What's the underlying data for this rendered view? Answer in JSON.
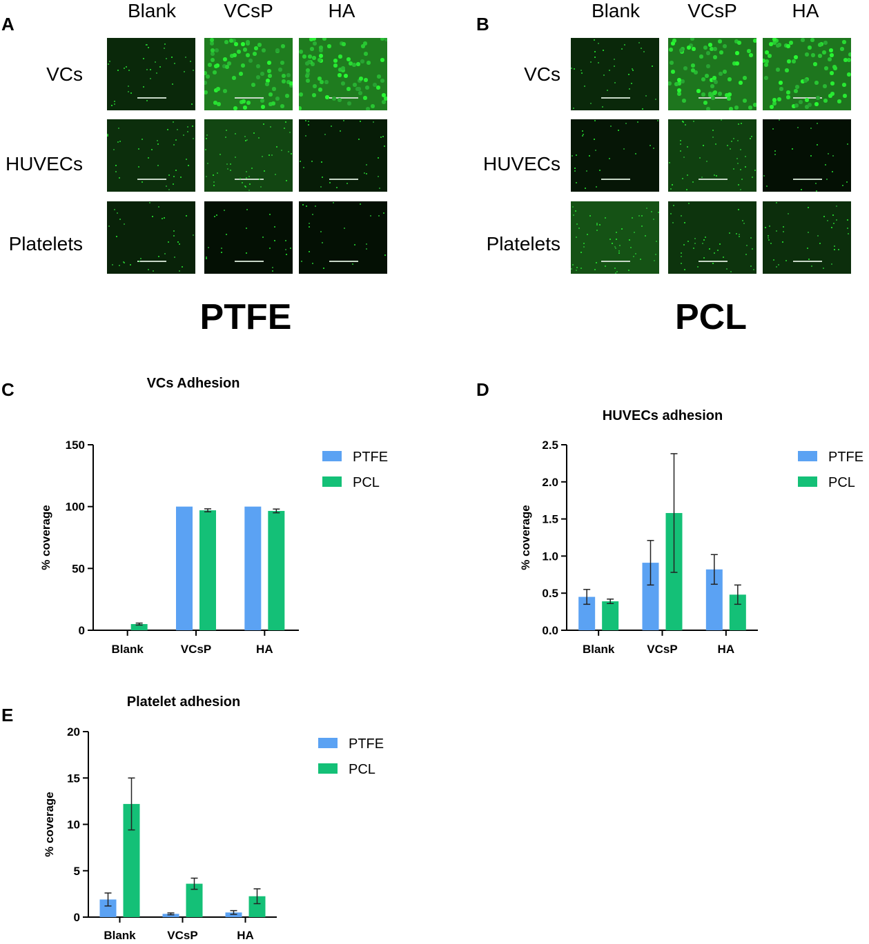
{
  "colors": {
    "ptfe": "#5ba2f3",
    "pcl": "#14c077",
    "axis": "#000000",
    "fluor": "#2fe040"
  },
  "panels": {
    "a": {
      "letter": "A",
      "material": "PTFE"
    },
    "b": {
      "letter": "B",
      "material": "PCL"
    },
    "c": {
      "letter": "C"
    },
    "d": {
      "letter": "D"
    },
    "e": {
      "letter": "E"
    }
  },
  "micrographs": {
    "columns": [
      "Blank",
      "VCsP",
      "HA"
    ],
    "rows": [
      "VCs",
      "HUVECs",
      "Platelets"
    ],
    "brightness_ptfe": [
      [
        0.25,
        0.95,
        0.95
      ],
      [
        0.3,
        0.5,
        0.15
      ],
      [
        0.2,
        0.05,
        0.05
      ]
    ],
    "brightness_pcl": [
      [
        0.25,
        0.9,
        0.9
      ],
      [
        0.1,
        0.45,
        0.05
      ],
      [
        0.6,
        0.35,
        0.3
      ]
    ]
  },
  "chart_data": [
    {
      "type": "bar",
      "title": "VCs Adhesion",
      "categories": [
        "Blank",
        "VCsP",
        "HA"
      ],
      "series": [
        {
          "name": "PTFE",
          "values": [
            0,
            100,
            100
          ],
          "errors": [
            0,
            0,
            0
          ]
        },
        {
          "name": "PCL",
          "values": [
            5,
            97,
            96.5
          ],
          "errors": [
            0.8,
            1.2,
            1.5
          ]
        }
      ],
      "ylabel": "% coverage",
      "ylim": [
        0,
        150
      ],
      "yticks": [
        "0",
        "50",
        "100",
        "150"
      ],
      "legend": "top-right"
    },
    {
      "type": "bar",
      "title": "HUVECs adhesion",
      "categories": [
        "Blank",
        "VCsP",
        "HA"
      ],
      "series": [
        {
          "name": "PTFE",
          "values": [
            0.45,
            0.91,
            0.82
          ],
          "errors": [
            0.1,
            0.3,
            0.2
          ]
        },
        {
          "name": "PCL",
          "values": [
            0.39,
            1.58,
            0.48
          ],
          "errors": [
            0.03,
            0.8,
            0.13
          ]
        }
      ],
      "ylabel": "% coverage",
      "ylim": [
        0,
        2.5
      ],
      "yticks": [
        "0.0",
        "0.5",
        "1.0",
        "1.5",
        "2.0",
        "2.5"
      ],
      "legend": "top-right"
    },
    {
      "type": "bar",
      "title": "Platelet adhesion",
      "categories": [
        "Blank",
        "VCsP",
        "HA"
      ],
      "series": [
        {
          "name": "PTFE",
          "values": [
            1.9,
            0.35,
            0.5
          ],
          "errors": [
            0.7,
            0.1,
            0.2
          ]
        },
        {
          "name": "PCL",
          "values": [
            12.2,
            3.6,
            2.25
          ],
          "errors": [
            2.8,
            0.6,
            0.8
          ]
        }
      ],
      "ylabel": "% coverage",
      "ylim": [
        0,
        20
      ],
      "yticks": [
        "0",
        "5",
        "10",
        "15",
        "20"
      ],
      "legend": "top-right"
    }
  ]
}
